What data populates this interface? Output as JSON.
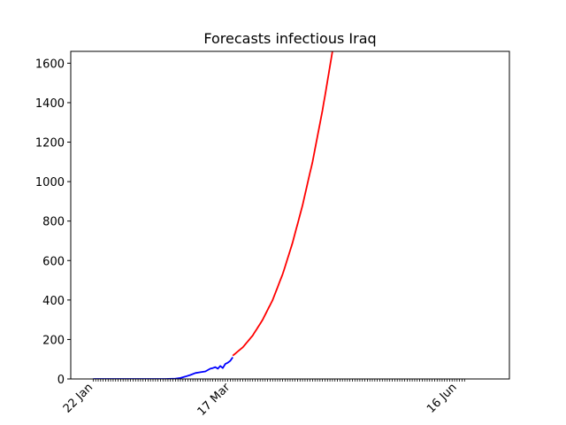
{
  "chart_data": {
    "type": "line",
    "title": "Forecasts infectious Iraq",
    "xlabel": "",
    "ylabel": "",
    "x_tick_labels": [
      "22 Jan",
      "17 Mar",
      "16 Jun"
    ],
    "x_tick_dates": [
      "2020-01-22",
      "2020-03-17",
      "2020-06-16"
    ],
    "xlim": [
      "2020-01-13",
      "2020-07-07"
    ],
    "ylim": [
      0,
      1660
    ],
    "y_ticks": [
      0,
      200,
      400,
      600,
      800,
      1000,
      1200,
      1400,
      1600
    ],
    "grid": false,
    "legend": "none",
    "series": [
      {
        "color": "#0000ff",
        "points": [
          [
            "2020-01-22",
            0
          ],
          [
            "2020-02-01",
            0
          ],
          [
            "2020-02-10",
            0
          ],
          [
            "2020-02-20",
            0
          ],
          [
            "2020-02-24",
            2
          ],
          [
            "2020-02-26",
            5
          ],
          [
            "2020-02-28",
            12
          ],
          [
            "2020-03-01",
            20
          ],
          [
            "2020-03-03",
            30
          ],
          [
            "2020-03-05",
            34
          ],
          [
            "2020-03-07",
            38
          ],
          [
            "2020-03-09",
            52
          ],
          [
            "2020-03-10",
            55
          ],
          [
            "2020-03-11",
            60
          ],
          [
            "2020-03-12",
            52
          ],
          [
            "2020-03-13",
            66
          ],
          [
            "2020-03-14",
            55
          ],
          [
            "2020-03-15",
            76
          ],
          [
            "2020-03-16",
            82
          ],
          [
            "2020-03-17",
            92
          ],
          [
            "2020-03-18",
            110
          ]
        ]
      },
      {
        "color": "#ff0000",
        "points": [
          [
            "2020-03-18",
            118
          ],
          [
            "2020-03-22",
            160
          ],
          [
            "2020-03-26",
            220
          ],
          [
            "2020-03-30",
            300
          ],
          [
            "2020-04-03",
            400
          ],
          [
            "2020-04-07",
            530
          ],
          [
            "2020-04-11",
            690
          ],
          [
            "2020-04-15",
            880
          ],
          [
            "2020-04-19",
            1100
          ],
          [
            "2020-04-23",
            1360
          ],
          [
            "2020-04-27",
            1660
          ]
        ]
      }
    ]
  }
}
